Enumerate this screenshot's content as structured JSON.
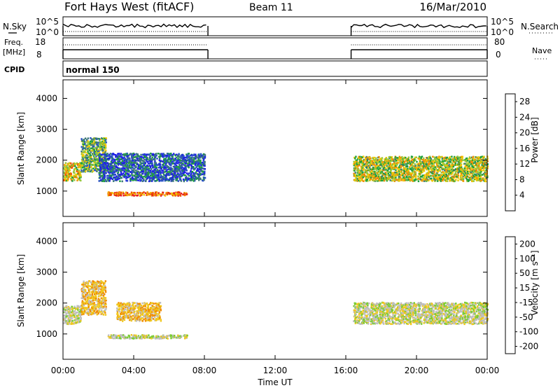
{
  "header": {
    "title": "Fort Hays West (fitACF)",
    "beam": "Beam 11",
    "date": "16/Mar/2010"
  },
  "summary": {
    "nsky_label": "N.Sky",
    "nsky_ticks": [
      "10^5",
      "10^0"
    ],
    "nsearch_label": "N.Search",
    "nsearch_ticks": [
      "10^5",
      "10^0"
    ],
    "freq_label": "Freq.",
    "freq_unit": "[MHz]",
    "freq_ticks": [
      "18",
      "8"
    ],
    "nave_label": "Nave",
    "nave_ticks": [
      "80",
      "0"
    ],
    "cpid_label": "CPID",
    "cpid_value": "normal 150"
  },
  "colors": {
    "power_scale": [
      "#1e1ee6",
      "#2850c8",
      "#3c7878",
      "#1ea03c",
      "#96c83c",
      "#f0c800",
      "#f08c00",
      "#f05000",
      "#e61e1e"
    ],
    "velocity_scale": [
      "#2832c8",
      "#327ab4",
      "#28a05a",
      "#7ccc32",
      "#bebebe",
      "#f0c81e",
      "#f08c00",
      "#f05000",
      "#e61e1e"
    ]
  },
  "chart_data": [
    {
      "type": "heatmap",
      "name": "power",
      "ylabel": "Slant Range [km]",
      "xlabel": "",
      "ylim": [
        180,
        4600
      ],
      "yticks": [
        "1000",
        "2000",
        "3000",
        "4000"
      ],
      "xlim": [
        0,
        24
      ],
      "colorbar_label": "Power [dB]",
      "colorbar_ticks": [
        "4",
        "8",
        "12",
        "16",
        "20",
        "24",
        "28"
      ],
      "colorbar_range": [
        0,
        30
      ],
      "data_gap_ut": [
        8.2,
        16.3
      ],
      "features": [
        {
          "ut": [
            0.0,
            1.0
          ],
          "range_km": [
            1300,
            1900
          ],
          "value_db": 18
        },
        {
          "ut": [
            1.0,
            2.4
          ],
          "range_km": [
            1600,
            2700
          ],
          "value_db": 12
        },
        {
          "ut": [
            2.0,
            8.0
          ],
          "range_km": [
            1300,
            2200
          ],
          "value_db": 6
        },
        {
          "ut": [
            2.5,
            7.0
          ],
          "range_km": [
            830,
            950
          ],
          "value_db": 24
        },
        {
          "ut": [
            16.4,
            24.0
          ],
          "range_km": [
            1300,
            2100
          ],
          "value_db": 16
        }
      ]
    },
    {
      "type": "heatmap",
      "name": "velocity",
      "ylabel": "Slant Range [km]",
      "xlabel": "Time UT",
      "ylim": [
        180,
        4600
      ],
      "yticks": [
        "1000",
        "2000",
        "3000",
        "4000"
      ],
      "xticks": [
        "00:00",
        "04:00",
        "08:00",
        "12:00",
        "16:00",
        "20:00",
        "00:00"
      ],
      "xlim": [
        0,
        24
      ],
      "colorbar_label": "Velocity [m s⁻¹]",
      "colorbar_ticks": [
        "200",
        "100",
        "50",
        "15",
        "-15",
        "-50",
        "-100",
        "-200"
      ],
      "colorbar_range": [
        -250,
        250
      ],
      "data_gap_ut": [
        8.2,
        16.3
      ],
      "features": [
        {
          "ut": [
            0.0,
            1.0
          ],
          "range_km": [
            1300,
            1900
          ],
          "value_ms": 0
        },
        {
          "ut": [
            1.0,
            2.4
          ],
          "range_km": [
            1600,
            2700
          ],
          "value_ms": -60
        },
        {
          "ut": [
            3.0,
            5.5
          ],
          "range_km": [
            1400,
            2000
          ],
          "value_ms": -60
        },
        {
          "ut": [
            2.5,
            7.0
          ],
          "range_km": [
            830,
            950
          ],
          "value_ms": 0
        },
        {
          "ut": [
            16.4,
            24.0
          ],
          "range_km": [
            1300,
            2000
          ],
          "value_ms": 0
        }
      ]
    }
  ]
}
